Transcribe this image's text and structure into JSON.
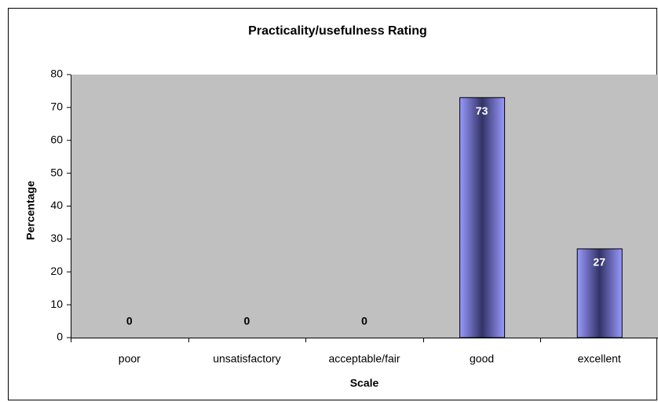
{
  "chart_data": {
    "type": "bar",
    "title": "Practicality/usefulness Rating",
    "x_label": "Scale",
    "y_label": "Percentage",
    "categories": [
      "poor",
      "unsatisfactory",
      "acceptable/fair",
      "good",
      "excellent"
    ],
    "values": [
      0,
      0,
      0,
      73,
      27
    ],
    "color": "#9999ff",
    "ylim": [
      0,
      80
    ],
    "yticks": [
      0,
      10,
      20,
      30,
      40,
      50,
      60,
      70,
      80
    ],
    "grid": false,
    "background": "#c0c0c0"
  }
}
